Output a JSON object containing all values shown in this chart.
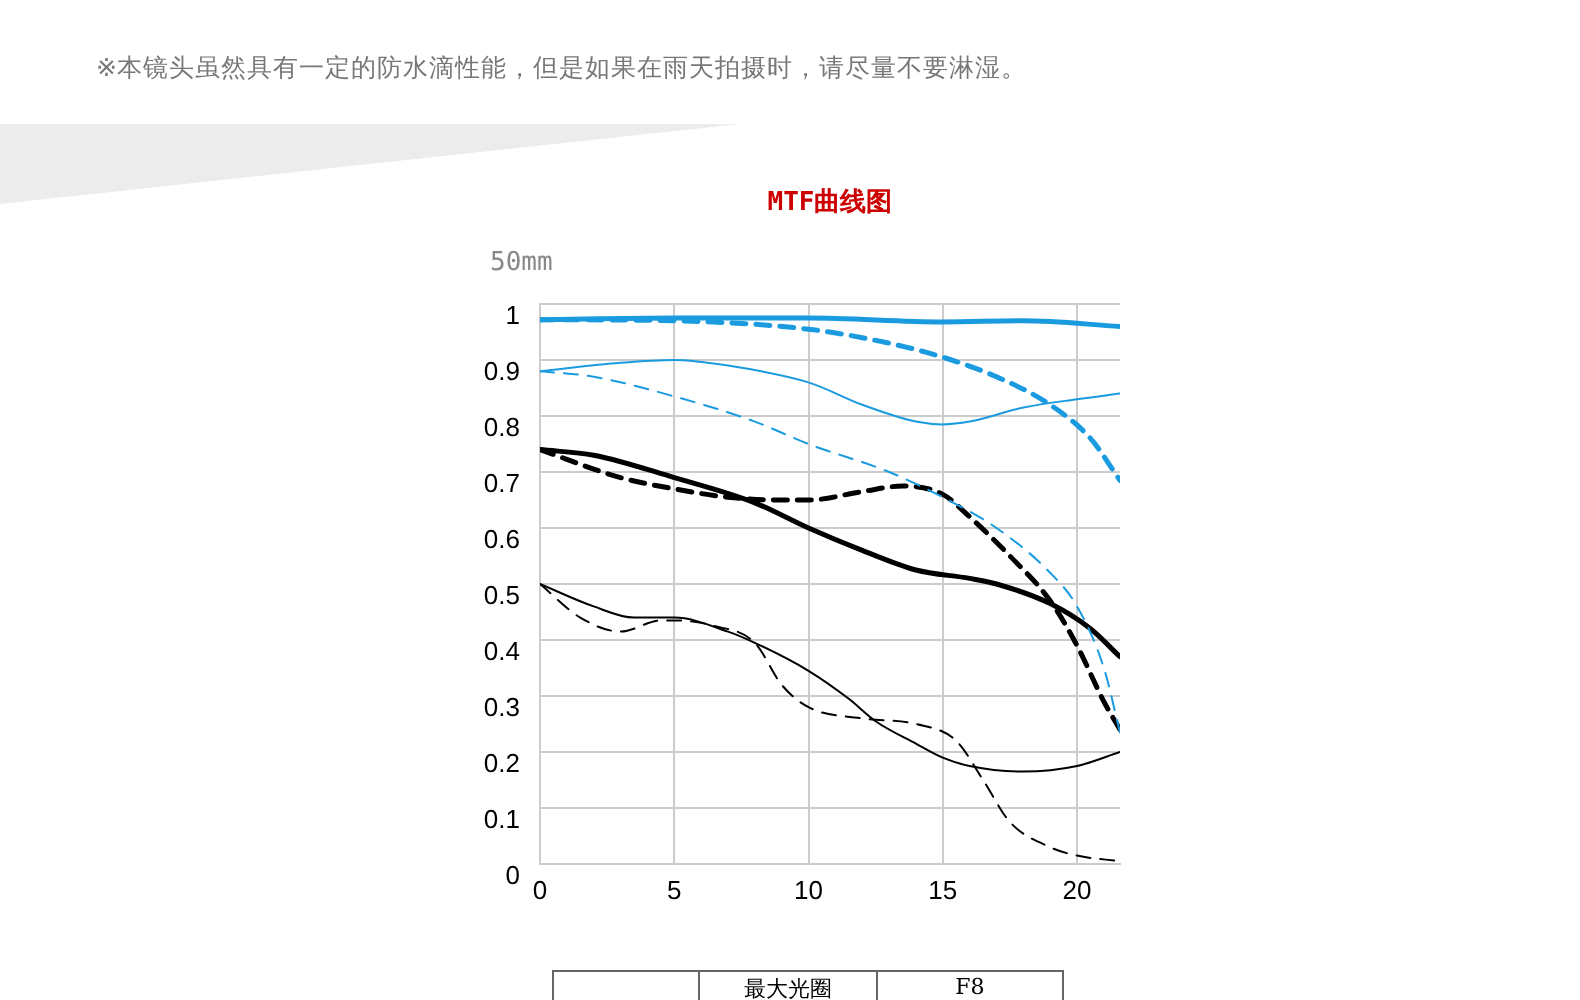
{
  "chart_data": {
    "type": "line",
    "title": "MTF曲线图",
    "ylabel": "50mm",
    "annotations": [
      "※本镜头虽然具有一定的防水滴性能，但是如果在雨天拍摄时，请尽量不要淋湿。",
      "最大光圈",
      "F8"
    ],
    "xlim": [
      0,
      21.6
    ],
    "xticks": [
      0,
      5,
      10,
      15,
      20
    ],
    "ylim": [
      0,
      1
    ],
    "yticks": [
      0,
      0.1,
      0.2,
      0.3,
      0.4,
      0.5,
      0.6,
      0.7,
      0.8,
      0.9,
      1
    ],
    "grid": true,
    "legend": false,
    "marker": "none",
    "series": [
      {
        "color": "#1a9be0",
        "line_style": "solid",
        "x": [
          0,
          5,
          10,
          15,
          18,
          21.6
        ],
        "values": [
          0.972,
          0.975,
          0.975,
          0.968,
          0.97,
          0.96
        ]
      },
      {
        "color": "#1a9be0",
        "line_style": "dashed",
        "x": [
          0,
          5,
          10,
          13,
          15,
          17,
          19,
          20.5,
          21.6
        ],
        "values": [
          0.972,
          0.97,
          0.955,
          0.93,
          0.905,
          0.87,
          0.82,
          0.76,
          0.685
        ]
      },
      {
        "color": "#1a9be0",
        "line_style": "solid",
        "x": [
          0,
          3,
          5,
          7,
          10,
          12,
          14,
          15,
          16,
          18,
          20,
          21.6
        ],
        "values": [
          0.88,
          0.895,
          0.9,
          0.89,
          0.86,
          0.82,
          0.79,
          0.785,
          0.79,
          0.815,
          0.83,
          0.84
        ]
      },
      {
        "color": "#1a9be0",
        "line_style": "dashed",
        "x": [
          0,
          2,
          5,
          8,
          10,
          13,
          15,
          17,
          19,
          20,
          21,
          21.6
        ],
        "values": [
          0.88,
          0.87,
          0.835,
          0.79,
          0.75,
          0.7,
          0.655,
          0.6,
          0.52,
          0.46,
          0.35,
          0.235
        ]
      },
      {
        "color": "#000000",
        "line_style": "solid",
        "x": [
          0,
          2,
          5,
          8,
          10,
          12,
          14,
          16,
          17,
          19,
          20.5,
          21.6
        ],
        "values": [
          0.74,
          0.73,
          0.69,
          0.645,
          0.6,
          0.56,
          0.525,
          0.51,
          0.5,
          0.465,
          0.42,
          0.37
        ]
      },
      {
        "color": "#000000",
        "line_style": "dashed",
        "x": [
          0,
          3,
          5,
          7,
          9,
          10,
          12,
          13.5,
          15,
          16,
          17.5,
          19,
          20,
          21,
          21.6
        ],
        "values": [
          0.74,
          0.69,
          0.67,
          0.655,
          0.65,
          0.65,
          0.665,
          0.675,
          0.66,
          0.62,
          0.55,
          0.47,
          0.39,
          0.29,
          0.24
        ]
      },
      {
        "color": "#000000",
        "line_style": "solid",
        "x": [
          0,
          2,
          3.5,
          5,
          7,
          8,
          10,
          11.5,
          12.5,
          14,
          15,
          16,
          18,
          20,
          21.6
        ],
        "values": [
          0.5,
          0.46,
          0.44,
          0.44,
          0.415,
          0.395,
          0.345,
          0.295,
          0.255,
          0.215,
          0.19,
          0.175,
          0.165,
          0.175,
          0.2
        ]
      },
      {
        "color": "#000000",
        "line_style": "dashed",
        "x": [
          0,
          1.5,
          3,
          4.5,
          5,
          6.5,
          8,
          9,
          10,
          12,
          14,
          15.5,
          16.5,
          17.5,
          19,
          20,
          21.6
        ],
        "values": [
          0.5,
          0.44,
          0.415,
          0.435,
          0.435,
          0.425,
          0.395,
          0.32,
          0.28,
          0.26,
          0.25,
          0.22,
          0.15,
          0.075,
          0.03,
          0.015,
          0.005
        ]
      }
    ]
  }
}
